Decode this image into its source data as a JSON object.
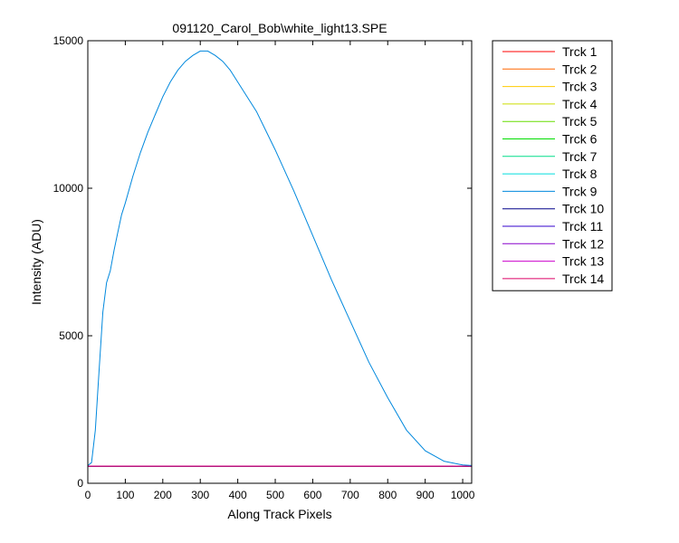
{
  "chart_data": {
    "type": "line",
    "title": "091120_Carol_Bob\\white_light13.SPE",
    "xlabel": "Along Track Pixels",
    "ylabel": "Intensity (ADU)",
    "xlim": [
      0,
      1024
    ],
    "ylim": [
      0,
      15000
    ],
    "x_ticks": [
      0,
      100,
      200,
      300,
      400,
      500,
      600,
      700,
      800,
      900,
      1000
    ],
    "y_ticks": [
      0,
      5000,
      10000,
      15000
    ],
    "grid": false,
    "legend_position": "outside-top-right",
    "series": [
      {
        "name": "Trck 1",
        "color": "#ff0000",
        "baseline": 580
      },
      {
        "name": "Trck 2",
        "color": "#ff6600",
        "baseline": 580
      },
      {
        "name": "Trck 3",
        "color": "#ffcc00",
        "baseline": 580
      },
      {
        "name": "Trck 4",
        "color": "#ccdd00",
        "baseline": 580
      },
      {
        "name": "Trck 5",
        "color": "#66dd00",
        "baseline": 580
      },
      {
        "name": "Trck 6",
        "color": "#00dd00",
        "baseline": 580
      },
      {
        "name": "Trck 7",
        "color": "#00dd88",
        "baseline": 580
      },
      {
        "name": "Trck 8",
        "color": "#00dddd",
        "baseline": 580
      },
      {
        "name": "Trck 9",
        "color": "#0088dd",
        "x": [
          0,
          10,
          20,
          30,
          40,
          50,
          60,
          70,
          80,
          90,
          100,
          120,
          140,
          160,
          180,
          200,
          220,
          240,
          260,
          280,
          300,
          320,
          340,
          360,
          380,
          400,
          450,
          500,
          550,
          600,
          650,
          700,
          750,
          800,
          850,
          900,
          950,
          1000,
          1024
        ],
        "values": [
          600,
          700,
          1800,
          3800,
          5800,
          6800,
          7200,
          7900,
          8500,
          9100,
          9500,
          10400,
          11200,
          11900,
          12500,
          13100,
          13600,
          14000,
          14300,
          14500,
          14650,
          14650,
          14500,
          14300,
          14000,
          13600,
          12600,
          11300,
          9900,
          8400,
          6900,
          5500,
          4100,
          2900,
          1800,
          1100,
          750,
          620,
          600
        ]
      },
      {
        "name": "Trck 10",
        "color": "#000088",
        "baseline": 580
      },
      {
        "name": "Trck 11",
        "color": "#3300cc",
        "baseline": 580
      },
      {
        "name": "Trck 12",
        "color": "#8800cc",
        "baseline": 580
      },
      {
        "name": "Trck 13",
        "color": "#cc00cc",
        "baseline": 580
      },
      {
        "name": "Trck 14",
        "color": "#dd0066",
        "baseline": 580
      }
    ]
  }
}
